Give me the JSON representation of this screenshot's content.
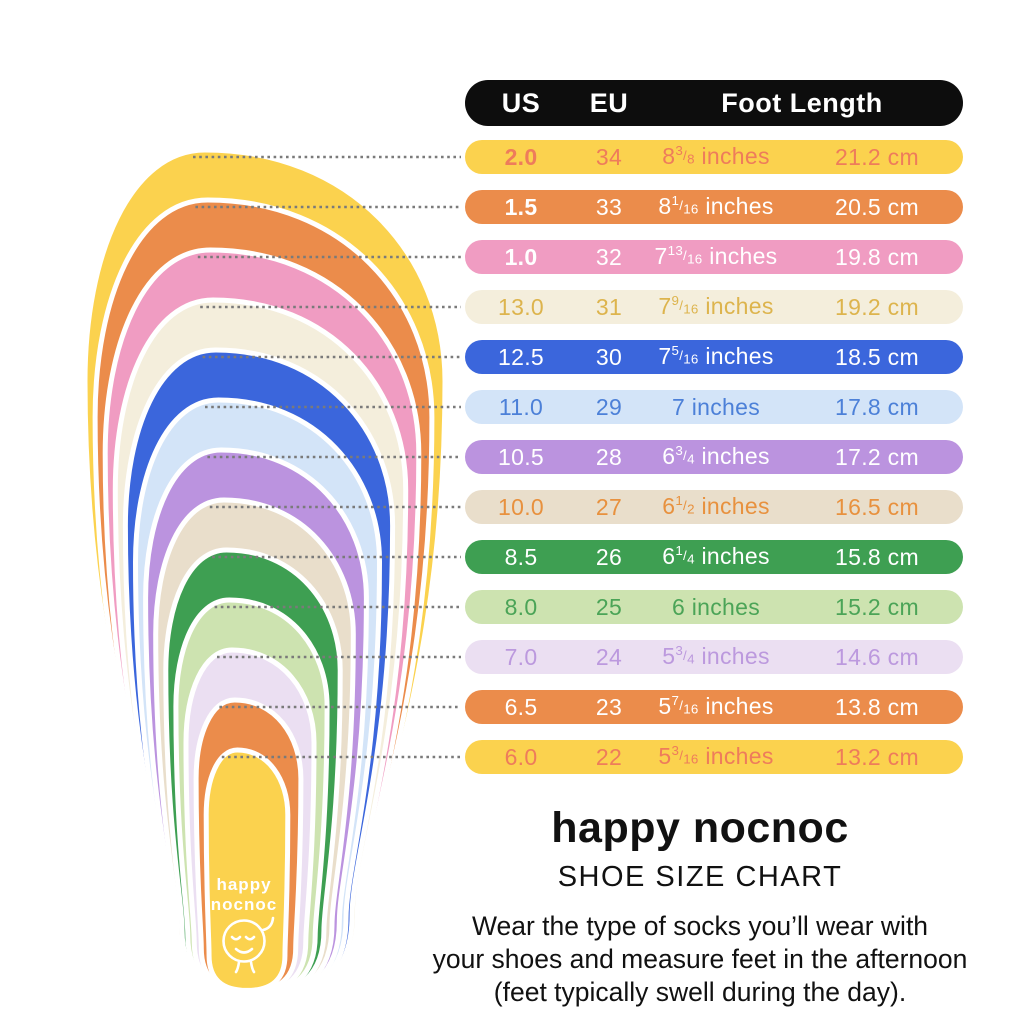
{
  "chart_data": {
    "type": "table",
    "title": "happy nocnoc SHOE SIZE CHART",
    "columns": [
      "US",
      "EU",
      "Foot Length (inches)",
      "Foot Length (cm)"
    ],
    "rows": [
      [
        "2.0",
        "34",
        "8 3/8 inches",
        "21.2 cm"
      ],
      [
        "1.5",
        "33",
        "8 1/16 inches",
        "20.5 cm"
      ],
      [
        "1.0",
        "32",
        "7 13/16 inches",
        "19.8 cm"
      ],
      [
        "13.0",
        "31",
        "7 9/16 inches",
        "19.2 cm"
      ],
      [
        "12.5",
        "30",
        "7 5/16 inches",
        "18.5 cm"
      ],
      [
        "11.0",
        "29",
        "7 inches",
        "17.8 cm"
      ],
      [
        "10.5",
        "28",
        "6 3/4 inches",
        "17.2 cm"
      ],
      [
        "10.0",
        "27",
        "6 1/2 inches",
        "16.5 cm"
      ],
      [
        "8.5",
        "26",
        "6 1/4 inches",
        "15.8 cm"
      ],
      [
        "8.0",
        "25",
        "6 inches",
        "15.2 cm"
      ],
      [
        "7.0",
        "24",
        "5 3/4 inches",
        "14.6 cm"
      ],
      [
        "6.5",
        "23",
        "5 7/16 inches",
        "13.8 cm"
      ],
      [
        "6.0",
        "22",
        "5 3/16 inches",
        "13.2 cm"
      ]
    ]
  },
  "table": {
    "header": {
      "us": "US",
      "eu": "EU",
      "foot_length": "Foot Length"
    },
    "header_bg": "#0d0d0d",
    "unit": "inches",
    "rows": [
      {
        "us": "2.0",
        "eu": "34",
        "whole": "8",
        "num": "3",
        "den": "8",
        "cm": "21.2 cm",
        "bg": "#FBD24E",
        "fg": "#EE7C5B",
        "us_bold": true
      },
      {
        "us": "1.5",
        "eu": "33",
        "whole": "8",
        "num": "1",
        "den": "16",
        "cm": "20.5 cm",
        "bg": "#EB8C4B",
        "fg": "#FFFFFF",
        "us_bold": true
      },
      {
        "us": "1.0",
        "eu": "32",
        "whole": "7",
        "num": "13",
        "den": "16",
        "cm": "19.8 cm",
        "bg": "#F09CC2",
        "fg": "#FFFFFF",
        "us_bold": true
      },
      {
        "us": "13.0",
        "eu": "31",
        "whole": "7",
        "num": "9",
        "den": "16",
        "cm": "19.2 cm",
        "bg": "#F4EEDC",
        "fg": "#DDB44D",
        "us_bold": false
      },
      {
        "us": "12.5",
        "eu": "30",
        "whole": "7",
        "num": "5",
        "den": "16",
        "cm": "18.5 cm",
        "bg": "#3B66DC",
        "fg": "#FFFFFF",
        "us_bold": false
      },
      {
        "us": "11.0",
        "eu": "29",
        "whole": "7",
        "num": null,
        "den": null,
        "cm": "17.8 cm",
        "bg": "#D3E4F8",
        "fg": "#4C80D8",
        "us_bold": false
      },
      {
        "us": "10.5",
        "eu": "28",
        "whole": "6",
        "num": "3",
        "den": "4",
        "cm": "17.2 cm",
        "bg": "#BB93DF",
        "fg": "#FFFFFF",
        "us_bold": false
      },
      {
        "us": "10.0",
        "eu": "27",
        "whole": "6",
        "num": "1",
        "den": "2",
        "cm": "16.5 cm",
        "bg": "#E9DECB",
        "fg": "#E8913E",
        "us_bold": false
      },
      {
        "us": "8.5",
        "eu": "26",
        "whole": "6",
        "num": "1",
        "den": "4",
        "cm": "15.8 cm",
        "bg": "#3E9F52",
        "fg": "#FFFFFF",
        "us_bold": false
      },
      {
        "us": "8.0",
        "eu": "25",
        "whole": "6",
        "num": null,
        "den": null,
        "cm": "15.2 cm",
        "bg": "#CDE3B0",
        "fg": "#4BA457",
        "us_bold": false
      },
      {
        "us": "7.0",
        "eu": "24",
        "whole": "5",
        "num": "3",
        "den": "4",
        "cm": "14.6 cm",
        "bg": "#EBDFF2",
        "fg": "#BC99DE",
        "us_bold": false
      },
      {
        "us": "6.5",
        "eu": "23",
        "whole": "5",
        "num": "7",
        "den": "16",
        "cm": "13.8 cm",
        "bg": "#EB8C4B",
        "fg": "#FFFFFF",
        "us_bold": false
      },
      {
        "us": "6.0",
        "eu": "22",
        "whole": "5",
        "num": "3",
        "den": "16",
        "cm": "13.2 cm",
        "bg": "#FBD24E",
        "fg": "#EE7C5B",
        "us_bold": false
      }
    ]
  },
  "footprint": {
    "label_line1": "happy",
    "label_line2": "nocnoc",
    "leader_line_color": "#7a7a7a"
  },
  "footer": {
    "brand": "happy nocnoc",
    "subtitle": "SHOE SIZE CHART",
    "note_lines": [
      "Wear the type of socks you’ll wear with",
      "your shoes and measure feet in the afternoon",
      "(feet typically swell during the day)."
    ]
  }
}
